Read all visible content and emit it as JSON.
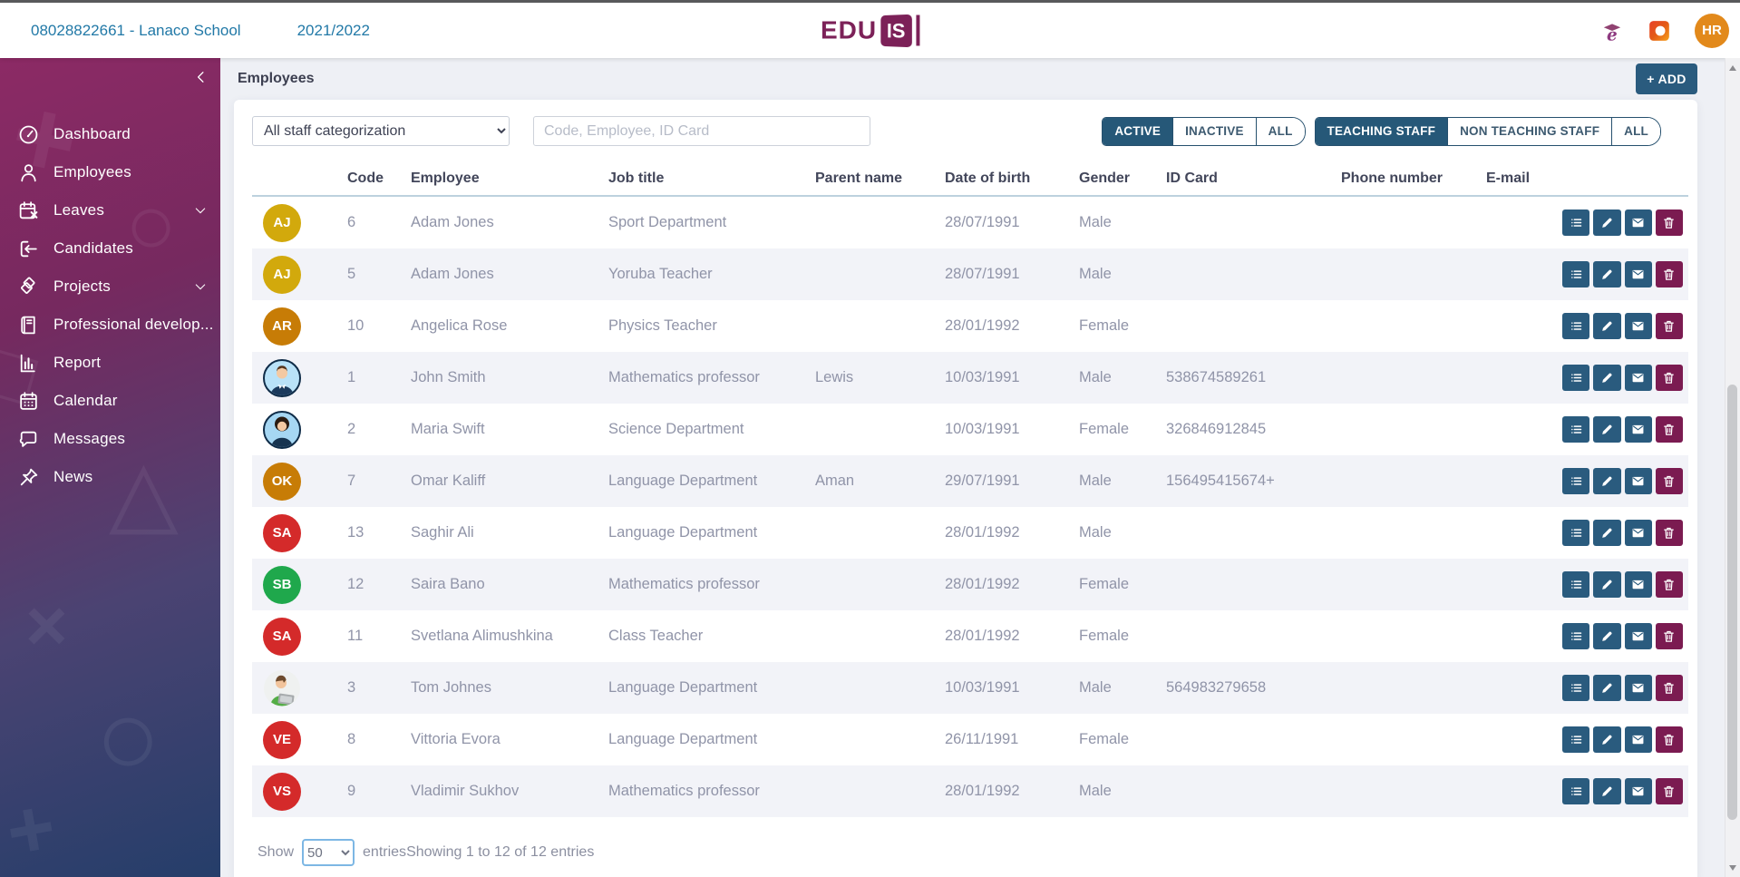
{
  "topbar": {
    "school_label": "08028822661 - Lanaco School",
    "year_label": "2021/2022",
    "logo": {
      "text_left": "EDU",
      "text_box": "IS"
    },
    "user_badge": "HR"
  },
  "sidebar": {
    "items": [
      {
        "label": "Dashboard",
        "icon": "dashboard-icon",
        "expandable": false,
        "active": false
      },
      {
        "label": "Employees",
        "icon": "employees-icon",
        "expandable": false,
        "active": true
      },
      {
        "label": "Leaves",
        "icon": "leaves-calendar-icon",
        "expandable": true,
        "active": false
      },
      {
        "label": "Candidates",
        "icon": "candidates-icon",
        "expandable": false,
        "active": false
      },
      {
        "label": "Projects",
        "icon": "projects-icon",
        "expandable": true,
        "active": false
      },
      {
        "label": "Professional develop...",
        "icon": "professional-development-icon",
        "expandable": false,
        "active": false
      },
      {
        "label": "Report",
        "icon": "report-icon",
        "expandable": false,
        "active": false
      },
      {
        "label": "Calendar",
        "icon": "calendar-icon",
        "expandable": false,
        "active": false
      },
      {
        "label": "Messages",
        "icon": "messages-icon",
        "expandable": false,
        "active": false
      },
      {
        "label": "News",
        "icon": "news-icon",
        "expandable": false,
        "active": false
      }
    ]
  },
  "page": {
    "title": "Employees",
    "add_button_label": "+ ADD"
  },
  "filters": {
    "category_select": {
      "selected": "All staff categorization"
    },
    "search": {
      "placeholder": "Code, Employee, ID Card"
    },
    "status_toggle": {
      "options": [
        "ACTIVE",
        "INACTIVE",
        "ALL"
      ],
      "selected": "ACTIVE"
    },
    "staff_toggle": {
      "options": [
        "TEACHING STAFF",
        "NON TEACHING STAFF",
        "ALL"
      ],
      "selected": "TEACHING STAFF"
    }
  },
  "table": {
    "columns": [
      "Code",
      "Employee",
      "Job title",
      "Parent name",
      "Date of birth",
      "Gender",
      "ID Card",
      "Phone number",
      "E-mail"
    ],
    "row_actions": [
      {
        "name": "details",
        "icon": "details-list-icon",
        "color": "#2a5b7e"
      },
      {
        "name": "edit",
        "icon": "edit-pencil-icon",
        "color": "#2a5b7e"
      },
      {
        "name": "mail",
        "icon": "mail-envelope-icon",
        "color": "#2a5b7e"
      },
      {
        "name": "delete",
        "icon": "delete-trash-icon",
        "color": "#7b1b51"
      }
    ],
    "rows": [
      {
        "avatar": {
          "type": "initials",
          "text": "AJ",
          "color": "#d2a90c"
        },
        "code": "6",
        "employee": "Adam Jones",
        "job_title": "Sport Department",
        "parent_name": "",
        "date_of_birth": "28/07/1991",
        "gender": "Male",
        "id_card": "",
        "phone_number": "",
        "email": ""
      },
      {
        "avatar": {
          "type": "initials",
          "text": "AJ",
          "color": "#d2a90c"
        },
        "code": "5",
        "employee": "Adam Jones",
        "job_title": "Yoruba Teacher",
        "parent_name": "",
        "date_of_birth": "28/07/1991",
        "gender": "Male",
        "id_card": "",
        "phone_number": "",
        "email": ""
      },
      {
        "avatar": {
          "type": "initials",
          "text": "AR",
          "color": "#c77c06"
        },
        "code": "10",
        "employee": "Angelica Rose",
        "job_title": "Physics Teacher",
        "parent_name": "",
        "date_of_birth": "28/01/1992",
        "gender": "Female",
        "id_card": "",
        "phone_number": "",
        "email": ""
      },
      {
        "avatar": {
          "type": "photo",
          "photo": "man-suit"
        },
        "code": "1",
        "employee": "John Smith",
        "job_title": "Mathematics professor",
        "parent_name": "Lewis",
        "date_of_birth": "10/03/1991",
        "gender": "Male",
        "id_card": "538674589261",
        "phone_number": "",
        "email": ""
      },
      {
        "avatar": {
          "type": "photo",
          "photo": "woman"
        },
        "code": "2",
        "employee": "Maria Swift",
        "job_title": "Science Department",
        "parent_name": "",
        "date_of_birth": "10/03/1991",
        "gender": "Female",
        "id_card": "326846912845",
        "phone_number": "",
        "email": ""
      },
      {
        "avatar": {
          "type": "initials",
          "text": "OK",
          "color": "#c77c06"
        },
        "code": "7",
        "employee": "Omar Kaliff",
        "job_title": "Language Department",
        "parent_name": "Aman",
        "date_of_birth": "29/07/1991",
        "gender": "Male",
        "id_card": "156495415674+",
        "phone_number": "",
        "email": ""
      },
      {
        "avatar": {
          "type": "initials",
          "text": "SA",
          "color": "#d42a2a"
        },
        "code": "13",
        "employee": "Saghir Ali",
        "job_title": "Language Department",
        "parent_name": "",
        "date_of_birth": "28/01/1992",
        "gender": "Male",
        "id_card": "",
        "phone_number": "",
        "email": ""
      },
      {
        "avatar": {
          "type": "initials",
          "text": "SB",
          "color": "#1fa84c"
        },
        "code": "12",
        "employee": "Saira Bano",
        "job_title": "Mathematics professor",
        "parent_name": "",
        "date_of_birth": "28/01/1992",
        "gender": "Female",
        "id_card": "",
        "phone_number": "",
        "email": ""
      },
      {
        "avatar": {
          "type": "initials",
          "text": "SA",
          "color": "#d42a2a"
        },
        "code": "11",
        "employee": "Svetlana Alimushkina",
        "job_title": "Class Teacher",
        "parent_name": "",
        "date_of_birth": "28/01/1992",
        "gender": "Female",
        "id_card": "",
        "phone_number": "",
        "email": ""
      },
      {
        "avatar": {
          "type": "photo",
          "photo": "man-casual"
        },
        "code": "3",
        "employee": "Tom Johnes",
        "job_title": "Language Department",
        "parent_name": "",
        "date_of_birth": "10/03/1991",
        "gender": "Male",
        "id_card": "564983279658",
        "phone_number": "",
        "email": ""
      },
      {
        "avatar": {
          "type": "initials",
          "text": "VE",
          "color": "#d42a2a"
        },
        "code": "8",
        "employee": "Vittoria Evora",
        "job_title": "Language Department",
        "parent_name": "",
        "date_of_birth": "26/11/1991",
        "gender": "Female",
        "id_card": "",
        "phone_number": "",
        "email": ""
      },
      {
        "avatar": {
          "type": "initials",
          "text": "VS",
          "color": "#d42a2a"
        },
        "code": "9",
        "employee": "Vladimir Sukhov",
        "job_title": "Mathematics professor",
        "parent_name": "",
        "date_of_birth": "28/01/1992",
        "gender": "Male",
        "id_card": "",
        "phone_number": "",
        "email": ""
      }
    ]
  },
  "pagination": {
    "show_label": "Show",
    "page_size": "50",
    "entries_label": "entries",
    "summary": "Showing 1 to 12 of 12 entries"
  },
  "colors": {
    "accent_teal": "#2a5b7e",
    "accent_magenta": "#7b1b51",
    "link_blue": "#2279a7",
    "logo_purple": "#7c2158",
    "badge_orange": "#e2891b",
    "row_alt": "#f2f3f8",
    "sidebar_gradient_top": "#8c2a65",
    "sidebar_gradient_bottom": "#253e6a"
  }
}
